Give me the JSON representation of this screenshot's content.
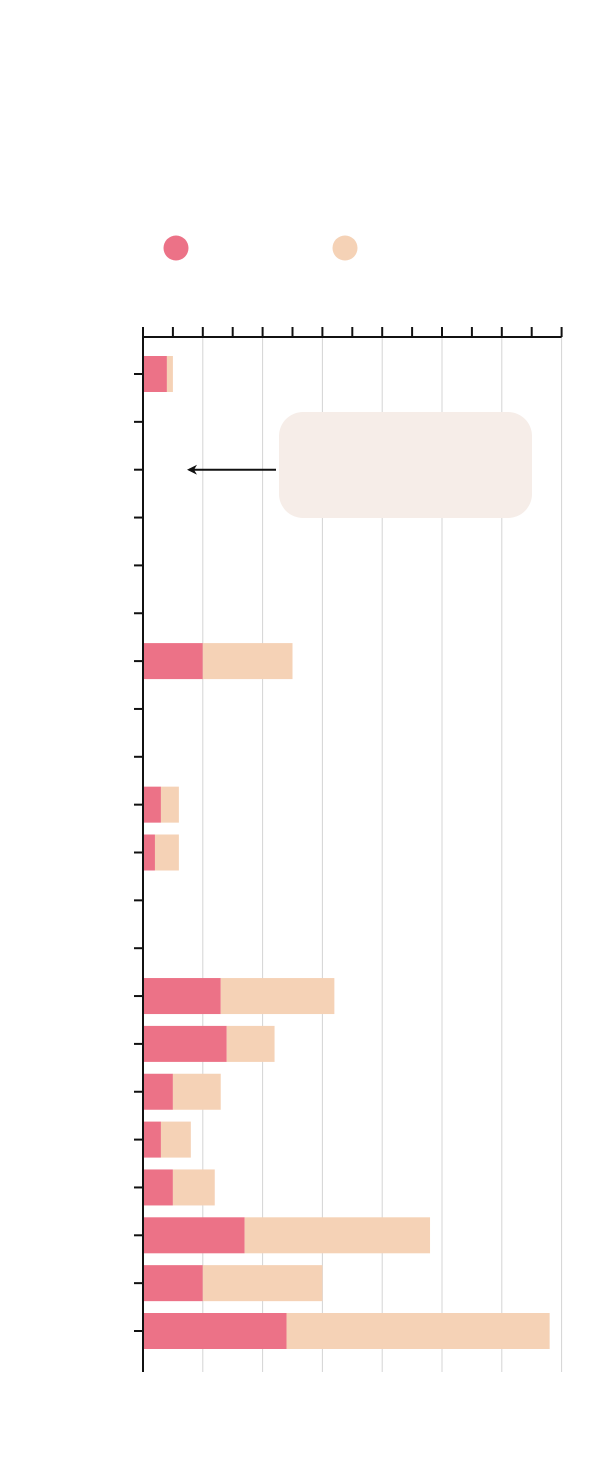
{
  "chart_data": {
    "type": "bar",
    "stacked": true,
    "orientation": "horizontal",
    "title": "",
    "xlabel": "",
    "ylabel": "",
    "xlim": [
      0,
      14
    ],
    "x_ticks_major": [
      0,
      2,
      4,
      6,
      8,
      10,
      12,
      14
    ],
    "x_ticks_minor": [
      1,
      3,
      5,
      7,
      9,
      11,
      13
    ],
    "grid": true,
    "legend_position": "top-left",
    "categories": [
      "",
      "",
      "",
      "",
      "",
      "",
      "",
      "",
      "",
      "",
      "",
      "",
      "",
      "",
      "",
      "",
      "",
      "",
      "",
      "",
      ""
    ],
    "series": [
      {
        "name": "",
        "color": "#ec7287",
        "values": [
          0.8,
          0,
          0,
          0,
          0,
          0,
          2.0,
          0,
          0,
          0.6,
          0.4,
          0,
          0,
          2.6,
          2.8,
          1.0,
          0.6,
          1.0,
          3.4,
          2.0,
          4.8
        ]
      },
      {
        "name": "",
        "color": "#f5d2b6",
        "values": [
          0.2,
          0,
          0,
          0,
          0,
          0,
          3.0,
          0,
          0,
          0.6,
          0.8,
          0,
          0,
          3.8,
          1.6,
          1.6,
          1.0,
          1.4,
          6.2,
          4.0,
          8.8
        ]
      }
    ],
    "annotation": {
      "text": "",
      "target_category_index": 2,
      "box_color": "#f6ede8"
    }
  }
}
